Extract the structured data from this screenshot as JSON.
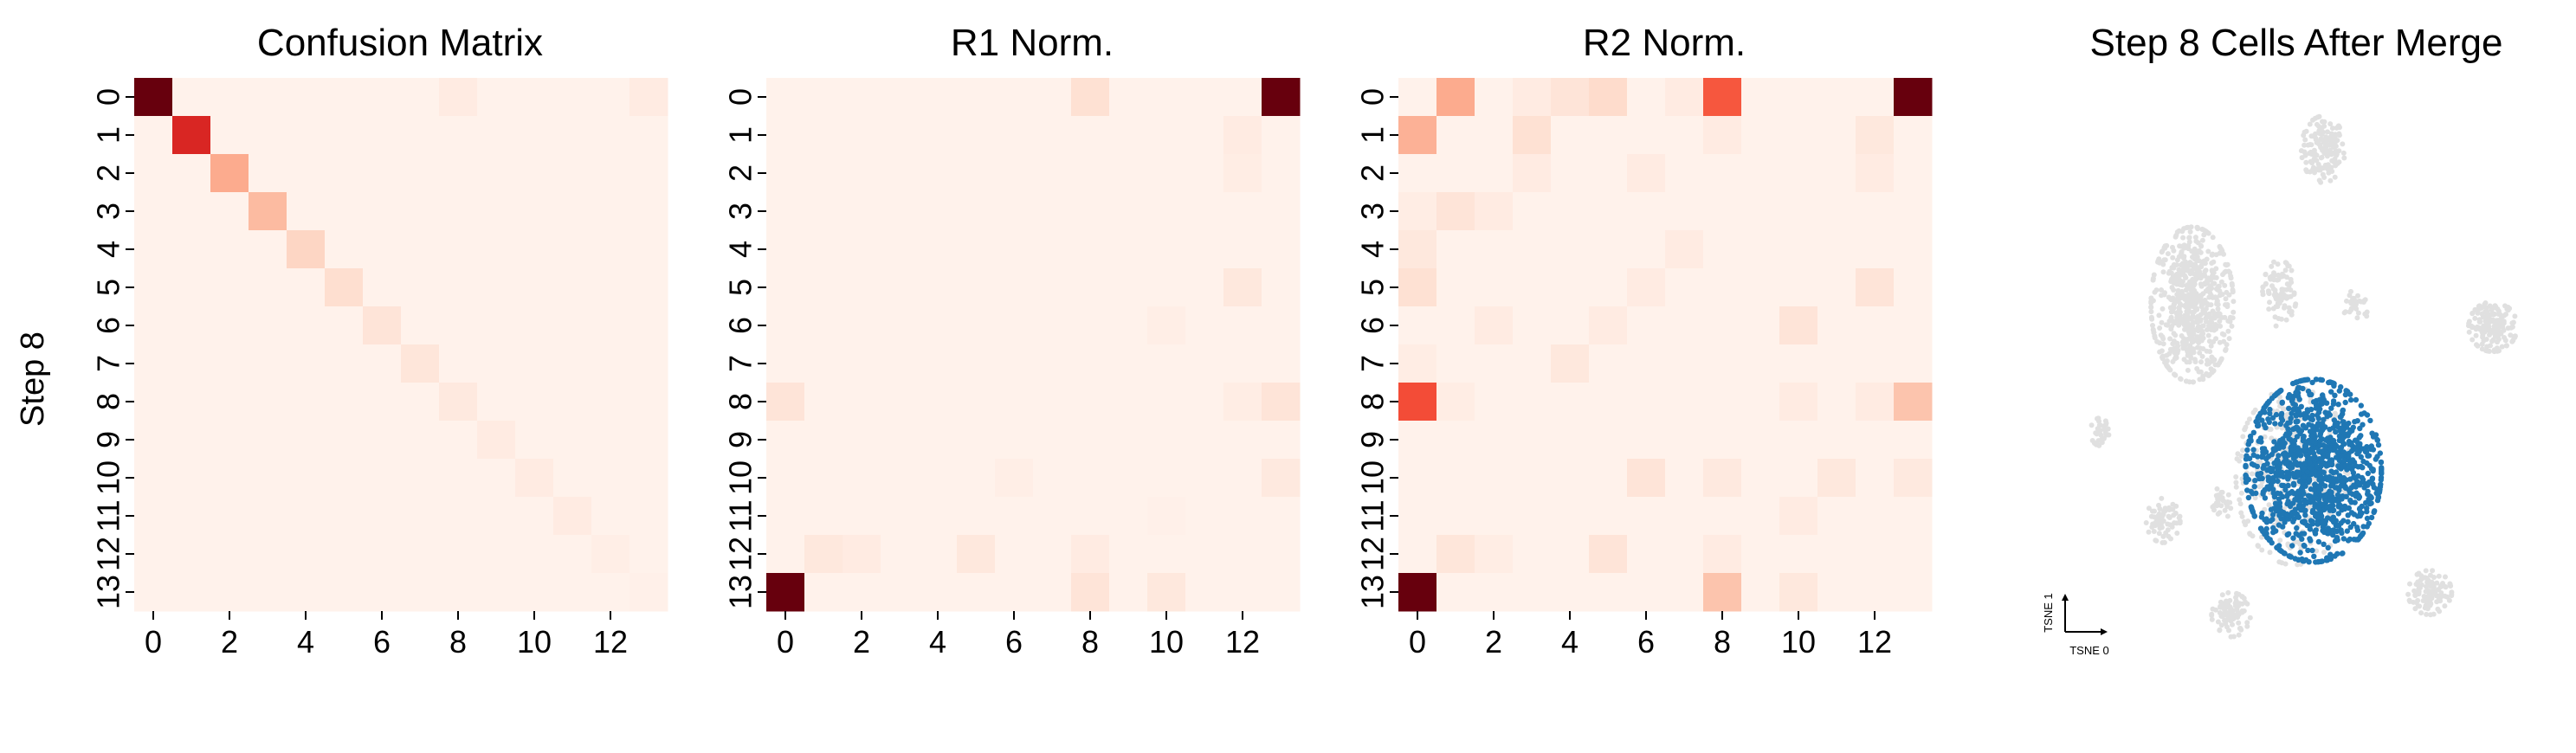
{
  "ylabel": "Step 8",
  "chart_data": [
    {
      "type": "heatmap",
      "title": "Confusion Matrix",
      "rows": [
        "0",
        "1",
        "2",
        "3",
        "4",
        "5",
        "6",
        "7",
        "8",
        "9",
        "10",
        "11",
        "12",
        "13"
      ],
      "cols": [
        "0",
        "1",
        "2",
        "3",
        "4",
        "5",
        "6",
        "7",
        "8",
        "9",
        "10",
        "11",
        "12",
        "13"
      ],
      "xticks": [
        "0",
        "2",
        "4",
        "6",
        "8",
        "10",
        "12"
      ],
      "ylabel": "Step 8",
      "colormap": "Reds",
      "vmin": 0,
      "vmax": 1,
      "values": [
        [
          1.0,
          0.02,
          0.02,
          0.02,
          0.02,
          0.02,
          0.02,
          0.02,
          0.06,
          0.02,
          0.02,
          0.02,
          0.02,
          0.06
        ],
        [
          0.02,
          0.7,
          0.02,
          0.02,
          0.02,
          0.02,
          0.02,
          0.02,
          0.02,
          0.02,
          0.02,
          0.02,
          0.02,
          0.02
        ],
        [
          0.02,
          0.02,
          0.3,
          0.02,
          0.02,
          0.02,
          0.02,
          0.02,
          0.02,
          0.02,
          0.02,
          0.02,
          0.02,
          0.02
        ],
        [
          0.02,
          0.02,
          0.02,
          0.25,
          0.02,
          0.02,
          0.02,
          0.02,
          0.02,
          0.02,
          0.02,
          0.02,
          0.02,
          0.02
        ],
        [
          0.02,
          0.02,
          0.02,
          0.02,
          0.16,
          0.02,
          0.02,
          0.02,
          0.02,
          0.02,
          0.02,
          0.02,
          0.02,
          0.02
        ],
        [
          0.02,
          0.02,
          0.02,
          0.02,
          0.02,
          0.13,
          0.02,
          0.02,
          0.02,
          0.02,
          0.02,
          0.02,
          0.02,
          0.02
        ],
        [
          0.02,
          0.02,
          0.02,
          0.02,
          0.02,
          0.02,
          0.1,
          0.02,
          0.02,
          0.02,
          0.02,
          0.02,
          0.02,
          0.02
        ],
        [
          0.02,
          0.02,
          0.02,
          0.02,
          0.02,
          0.02,
          0.02,
          0.09,
          0.02,
          0.02,
          0.02,
          0.02,
          0.02,
          0.02
        ],
        [
          0.02,
          0.02,
          0.02,
          0.02,
          0.02,
          0.02,
          0.02,
          0.02,
          0.07,
          0.02,
          0.02,
          0.02,
          0.02,
          0.02
        ],
        [
          0.02,
          0.02,
          0.02,
          0.02,
          0.02,
          0.02,
          0.02,
          0.02,
          0.02,
          0.06,
          0.02,
          0.02,
          0.02,
          0.02
        ],
        [
          0.02,
          0.02,
          0.02,
          0.02,
          0.02,
          0.02,
          0.02,
          0.02,
          0.02,
          0.02,
          0.06,
          0.02,
          0.02,
          0.02
        ],
        [
          0.02,
          0.02,
          0.02,
          0.02,
          0.02,
          0.02,
          0.02,
          0.02,
          0.02,
          0.02,
          0.02,
          0.06,
          0.02,
          0.02
        ],
        [
          0.02,
          0.02,
          0.02,
          0.02,
          0.02,
          0.02,
          0.02,
          0.02,
          0.02,
          0.02,
          0.02,
          0.02,
          0.04,
          0.02
        ],
        [
          0.02,
          0.02,
          0.02,
          0.02,
          0.02,
          0.02,
          0.02,
          0.02,
          0.02,
          0.02,
          0.02,
          0.02,
          0.02,
          0.03
        ]
      ]
    },
    {
      "type": "heatmap",
      "title": "R1 Norm.",
      "rows": [
        "0",
        "1",
        "2",
        "3",
        "4",
        "5",
        "6",
        "7",
        "8",
        "9",
        "10",
        "11",
        "12",
        "13"
      ],
      "cols": [
        "0",
        "1",
        "2",
        "3",
        "4",
        "5",
        "6",
        "7",
        "8",
        "9",
        "10",
        "11",
        "12",
        "13"
      ],
      "xticks": [
        "0",
        "2",
        "4",
        "6",
        "8",
        "10",
        "12"
      ],
      "colormap": "Reds",
      "vmin": 0,
      "vmax": 1,
      "values": [
        [
          0.02,
          0.02,
          0.02,
          0.02,
          0.02,
          0.02,
          0.02,
          0.02,
          0.12,
          0.02,
          0.02,
          0.02,
          0.02,
          1.0
        ],
        [
          0.02,
          0.02,
          0.02,
          0.02,
          0.02,
          0.02,
          0.02,
          0.02,
          0.02,
          0.02,
          0.02,
          0.02,
          0.06,
          0.02
        ],
        [
          0.02,
          0.02,
          0.02,
          0.02,
          0.02,
          0.02,
          0.02,
          0.02,
          0.02,
          0.02,
          0.02,
          0.02,
          0.05,
          0.02
        ],
        [
          0.02,
          0.02,
          0.02,
          0.02,
          0.02,
          0.02,
          0.02,
          0.02,
          0.02,
          0.02,
          0.02,
          0.02,
          0.02,
          0.02
        ],
        [
          0.02,
          0.02,
          0.02,
          0.02,
          0.02,
          0.02,
          0.02,
          0.02,
          0.02,
          0.02,
          0.02,
          0.02,
          0.02,
          0.02
        ],
        [
          0.02,
          0.02,
          0.02,
          0.02,
          0.02,
          0.02,
          0.02,
          0.02,
          0.02,
          0.02,
          0.02,
          0.02,
          0.08,
          0.02
        ],
        [
          0.02,
          0.02,
          0.02,
          0.02,
          0.02,
          0.02,
          0.02,
          0.02,
          0.02,
          0.02,
          0.04,
          0.02,
          0.02,
          0.02
        ],
        [
          0.02,
          0.02,
          0.02,
          0.02,
          0.02,
          0.02,
          0.02,
          0.02,
          0.02,
          0.02,
          0.02,
          0.02,
          0.02,
          0.02
        ],
        [
          0.1,
          0.02,
          0.02,
          0.02,
          0.02,
          0.02,
          0.02,
          0.02,
          0.02,
          0.02,
          0.02,
          0.02,
          0.05,
          0.1
        ],
        [
          0.02,
          0.02,
          0.02,
          0.02,
          0.02,
          0.02,
          0.02,
          0.02,
          0.02,
          0.02,
          0.02,
          0.02,
          0.02,
          0.02
        ],
        [
          0.02,
          0.02,
          0.02,
          0.02,
          0.02,
          0.02,
          0.04,
          0.02,
          0.02,
          0.02,
          0.02,
          0.02,
          0.02,
          0.07
        ],
        [
          0.02,
          0.02,
          0.02,
          0.02,
          0.02,
          0.02,
          0.02,
          0.02,
          0.02,
          0.02,
          0.03,
          0.02,
          0.02,
          0.02
        ],
        [
          0.02,
          0.08,
          0.06,
          0.02,
          0.02,
          0.08,
          0.02,
          0.02,
          0.06,
          0.02,
          0.02,
          0.02,
          0.02,
          0.02
        ],
        [
          1.0,
          0.02,
          0.02,
          0.02,
          0.02,
          0.02,
          0.02,
          0.02,
          0.1,
          0.02,
          0.08,
          0.02,
          0.02,
          0.02
        ]
      ]
    },
    {
      "type": "heatmap",
      "title": "R2 Norm.",
      "rows": [
        "0",
        "1",
        "2",
        "3",
        "4",
        "5",
        "6",
        "7",
        "8",
        "9",
        "10",
        "11",
        "12",
        "13"
      ],
      "cols": [
        "0",
        "1",
        "2",
        "3",
        "4",
        "5",
        "6",
        "7",
        "8",
        "9",
        "10",
        "11",
        "12",
        "13"
      ],
      "xticks": [
        "0",
        "2",
        "4",
        "6",
        "8",
        "10",
        "12"
      ],
      "colormap": "Reds",
      "vmin": 0,
      "vmax": 1,
      "values": [
        [
          0.02,
          0.3,
          0.02,
          0.06,
          0.1,
          0.14,
          0.02,
          0.06,
          0.55,
          0.02,
          0.02,
          0.02,
          0.02,
          1.0
        ],
        [
          0.28,
          0.02,
          0.02,
          0.12,
          0.02,
          0.02,
          0.02,
          0.02,
          0.06,
          0.02,
          0.02,
          0.02,
          0.08,
          0.02
        ],
        [
          0.02,
          0.02,
          0.02,
          0.06,
          0.02,
          0.02,
          0.06,
          0.02,
          0.02,
          0.02,
          0.02,
          0.02,
          0.06,
          0.02
        ],
        [
          0.05,
          0.1,
          0.06,
          0.02,
          0.02,
          0.02,
          0.02,
          0.02,
          0.02,
          0.02,
          0.02,
          0.02,
          0.02,
          0.02
        ],
        [
          0.08,
          0.02,
          0.02,
          0.02,
          0.02,
          0.02,
          0.02,
          0.06,
          0.02,
          0.02,
          0.02,
          0.02,
          0.02,
          0.02
        ],
        [
          0.12,
          0.02,
          0.02,
          0.02,
          0.02,
          0.02,
          0.06,
          0.02,
          0.02,
          0.02,
          0.02,
          0.02,
          0.1,
          0.02
        ],
        [
          0.02,
          0.02,
          0.06,
          0.02,
          0.02,
          0.06,
          0.02,
          0.02,
          0.02,
          0.02,
          0.1,
          0.02,
          0.02,
          0.02
        ],
        [
          0.05,
          0.02,
          0.02,
          0.02,
          0.08,
          0.02,
          0.02,
          0.02,
          0.02,
          0.02,
          0.02,
          0.02,
          0.02,
          0.02
        ],
        [
          0.58,
          0.05,
          0.02,
          0.02,
          0.02,
          0.02,
          0.02,
          0.02,
          0.02,
          0.02,
          0.06,
          0.02,
          0.06,
          0.22
        ],
        [
          0.02,
          0.02,
          0.02,
          0.02,
          0.02,
          0.02,
          0.02,
          0.02,
          0.02,
          0.02,
          0.02,
          0.02,
          0.02,
          0.02
        ],
        [
          0.02,
          0.02,
          0.02,
          0.02,
          0.02,
          0.02,
          0.1,
          0.02,
          0.07,
          0.02,
          0.02,
          0.08,
          0.02,
          0.07
        ],
        [
          0.02,
          0.02,
          0.02,
          0.02,
          0.02,
          0.02,
          0.02,
          0.02,
          0.02,
          0.02,
          0.06,
          0.02,
          0.02,
          0.02
        ],
        [
          0.02,
          0.09,
          0.05,
          0.02,
          0.02,
          0.1,
          0.02,
          0.02,
          0.06,
          0.02,
          0.02,
          0.02,
          0.02,
          0.02
        ],
        [
          1.0,
          0.02,
          0.02,
          0.02,
          0.02,
          0.02,
          0.02,
          0.02,
          0.22,
          0.02,
          0.08,
          0.02,
          0.02,
          0.02
        ]
      ]
    },
    {
      "type": "scatter",
      "title": "Step 8 Cells After Merge",
      "xlabel": "TSNE 0",
      "ylabel": "TSNE 1",
      "highlight_color": "#1f77b4",
      "background_color": "#e0e0e0",
      "background_clusters": [
        {
          "cx": 0.55,
          "cy": 0.91,
          "rx": 0.045,
          "ry": 0.06,
          "n": 150
        },
        {
          "cx": 0.28,
          "cy": 0.63,
          "rx": 0.085,
          "ry": 0.14,
          "n": 650
        },
        {
          "cx": 0.46,
          "cy": 0.65,
          "rx": 0.035,
          "ry": 0.06,
          "n": 90
        },
        {
          "cx": 0.62,
          "cy": 0.63,
          "rx": 0.03,
          "ry": 0.03,
          "n": 30
        },
        {
          "cx": 0.9,
          "cy": 0.59,
          "rx": 0.05,
          "ry": 0.045,
          "n": 170
        },
        {
          "cx": 0.09,
          "cy": 0.4,
          "rx": 0.02,
          "ry": 0.025,
          "n": 30
        },
        {
          "cx": 0.22,
          "cy": 0.24,
          "rx": 0.035,
          "ry": 0.04,
          "n": 70
        },
        {
          "cx": 0.34,
          "cy": 0.27,
          "rx": 0.02,
          "ry": 0.03,
          "n": 30
        },
        {
          "cx": 0.36,
          "cy": 0.07,
          "rx": 0.04,
          "ry": 0.04,
          "n": 90
        },
        {
          "cx": 0.77,
          "cy": 0.11,
          "rx": 0.045,
          "ry": 0.04,
          "n": 110
        },
        {
          "cx": 0.49,
          "cy": 0.32,
          "rx": 0.12,
          "ry": 0.16,
          "n": 400
        }
      ],
      "highlight_cluster": {
        "cx": 0.53,
        "cy": 0.33,
        "rx": 0.14,
        "ry": 0.165,
        "n": 1100
      }
    }
  ]
}
